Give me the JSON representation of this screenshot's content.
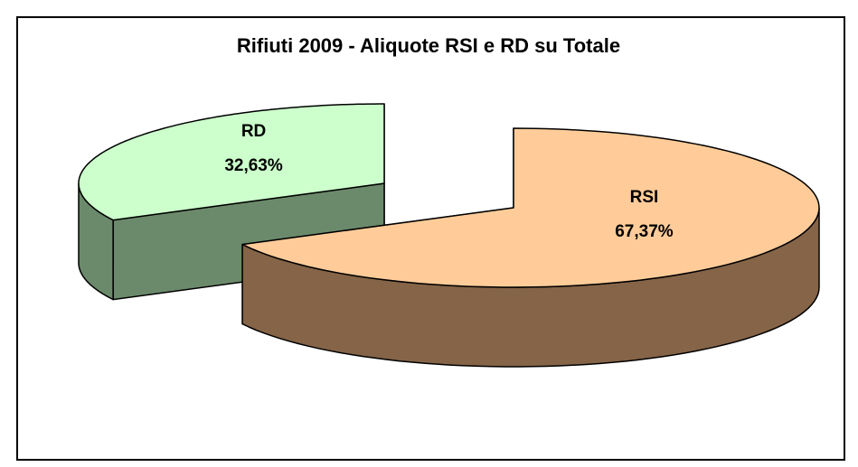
{
  "chart_data": {
    "type": "pie3d",
    "title": "Rifiuti 2009 - Aliquote RSI e RD su Totale",
    "categories": [
      "RD",
      "RSI"
    ],
    "values": [
      32.63,
      67.37
    ],
    "value_labels": [
      "32,63%",
      "67,37%"
    ],
    "colors": [
      "#ccffcc",
      "#ffcc99"
    ],
    "side_colors": [
      "#6b8a6b",
      "#856447"
    ]
  }
}
